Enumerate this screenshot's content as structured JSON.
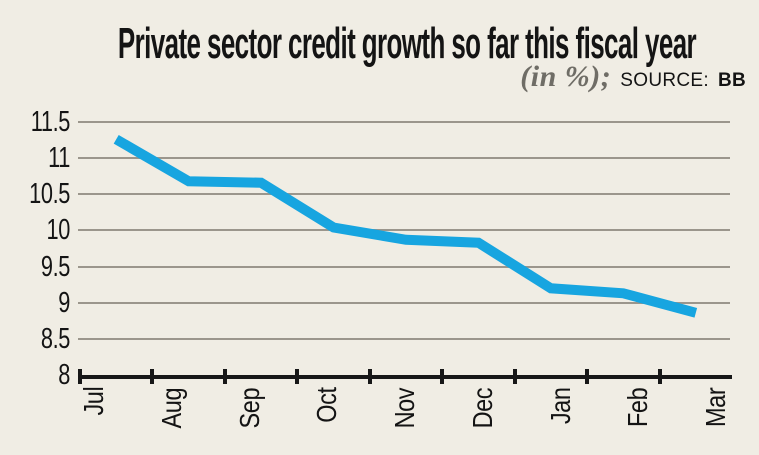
{
  "header": {
    "title": "Private sector credit growth so far this fiscal year",
    "unit_note": "(in %);",
    "source_label": "SOURCE:",
    "source_value": "BB"
  },
  "chart_data": {
    "type": "line",
    "title": "Private sector credit growth so far this fiscal year",
    "unit": "%",
    "categories": [
      "Jul",
      "Aug",
      "Sep",
      "Oct",
      "Nov",
      "Dec",
      "Jan",
      "Feb",
      "Mar"
    ],
    "values": [
      11.26,
      10.68,
      10.66,
      10.04,
      9.87,
      9.83,
      9.2,
      9.13,
      8.86
    ],
    "xlabel": "",
    "ylabel": "",
    "ylim": [
      8,
      11.5
    ],
    "y_tick_step": 0.5,
    "y_tick_labels": [
      "11.5",
      "11",
      "10.5",
      "10",
      "9.5",
      "9",
      "8.5",
      "8"
    ],
    "grid": "horizontal",
    "legend": "none"
  },
  "colors": {
    "background": "#f0ede4",
    "line": "#17a5e0",
    "gridline": "#9b968c",
    "axis": "#171717",
    "title_text": "#141414",
    "unit_note_gray": "#6f6d66"
  }
}
